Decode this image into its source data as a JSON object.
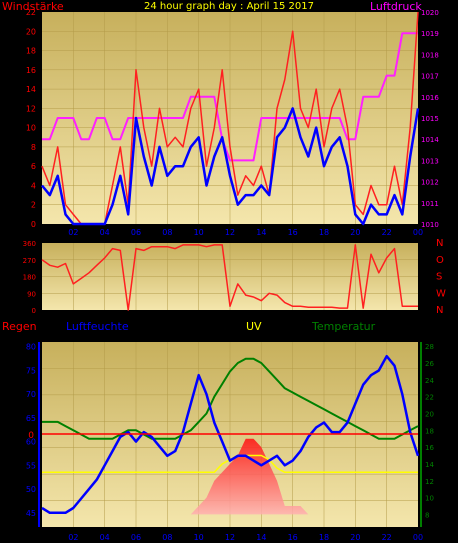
{
  "title": "24 hour graph day : April 15 2017",
  "colors": {
    "background": "#000000",
    "plot_top": "#c8b15e",
    "plot_bottom": "#f3e3a8",
    "wind": "#ff2020",
    "wind_avg": "#0000ff",
    "pressure": "#ff20ff",
    "direction": "#ff2020",
    "humidity": "#0000ff",
    "uv": "#ffff00",
    "temperature": "#008000",
    "rain_line": "#ff0000",
    "title": "#ffff00",
    "labels_magenta": "#ff00ff",
    "labels_red": "#ff0000",
    "labels_blue": "#0000ff",
    "labels_green": "#008000"
  },
  "x_ticks": [
    "02",
    "04",
    "06",
    "08",
    "10",
    "12",
    "14",
    "16",
    "18",
    "20",
    "22",
    "00"
  ],
  "chart_data": [
    {
      "type": "line",
      "name": "wind",
      "left_label": "Windstärke",
      "right_label": "Luftdruck",
      "y_left_ticks": [
        "0",
        "2",
        "4",
        "6",
        "8",
        "10",
        "12",
        "14",
        "16",
        "18",
        "20",
        "22"
      ],
      "y_right_ticks": [
        "1010",
        "1011",
        "1012",
        "1013",
        "1014",
        "1015",
        "1016",
        "1017",
        "1018",
        "1019",
        "1020"
      ],
      "ylim_left": [
        0,
        22
      ],
      "ylim_right": [
        1010,
        1020
      ],
      "x": [
        0,
        0.5,
        1,
        1.5,
        2,
        2.5,
        3,
        3.5,
        4,
        4.5,
        5,
        5.5,
        6,
        6.5,
        7,
        7.5,
        8,
        8.5,
        9,
        9.5,
        10,
        10.5,
        11,
        11.5,
        12,
        12.5,
        13,
        13.5,
        14,
        14.5,
        15,
        15.5,
        16,
        16.5,
        17,
        17.5,
        18,
        18.5,
        19,
        19.5,
        20,
        20.5,
        21,
        21.5,
        22,
        22.5,
        23,
        23.5,
        24
      ],
      "series": [
        {
          "values": [
            6,
            4,
            8,
            2,
            1,
            0,
            0,
            0,
            0,
            4,
            8,
            2,
            16,
            10,
            6,
            12,
            8,
            9,
            8,
            12,
            14,
            6,
            10,
            16,
            8,
            3,
            5,
            4,
            6,
            3,
            12,
            15,
            20,
            12,
            10,
            14,
            8,
            12,
            14,
            10,
            2,
            1,
            4,
            2,
            2,
            6,
            2,
            10,
            22
          ]
        },
        {
          "values": [
            4,
            3,
            5,
            1,
            0,
            0,
            0,
            0,
            0,
            2,
            5,
            1,
            11,
            7,
            4,
            8,
            5,
            6,
            6,
            8,
            9,
            4,
            7,
            9,
            5,
            2,
            3,
            3,
            4,
            3,
            9,
            10,
            12,
            9,
            7,
            10,
            6,
            8,
            9,
            6,
            1,
            0,
            2,
            1,
            1,
            3,
            1,
            7,
            12
          ]
        },
        {
          "values": [
            1014,
            1014,
            1015,
            1015,
            1015,
            1014,
            1014,
            1015,
            1015,
            1014,
            1014,
            1015,
            1015,
            1015,
            1015,
            1015,
            1015,
            1015,
            1015,
            1016,
            1016,
            1016,
            1016,
            1014,
            1013,
            1013,
            1013,
            1013,
            1015,
            1015,
            1015,
            1015,
            1015,
            1015,
            1015,
            1015,
            1015,
            1015,
            1015,
            1014,
            1014,
            1016,
            1016,
            1016,
            1017,
            1017,
            1019,
            1019,
            1019
          ]
        }
      ]
    },
    {
      "type": "line",
      "name": "direction",
      "y_left_ticks": [
        "0",
        "90",
        "180",
        "270",
        "360"
      ],
      "y_right_ticks": [
        "N",
        "W",
        "S",
        "O",
        "N"
      ],
      "ylim": [
        0,
        360
      ],
      "x": [
        0,
        0.5,
        1,
        1.5,
        2,
        2.5,
        3,
        3.5,
        4,
        4.5,
        5,
        5.5,
        6,
        6.5,
        7,
        7.5,
        8,
        8.5,
        9,
        9.5,
        10,
        10.5,
        11,
        11.5,
        12,
        12.5,
        13,
        13.5,
        14,
        14.5,
        15,
        15.5,
        16,
        16.5,
        17,
        17.5,
        18,
        18.5,
        19,
        19.5,
        20,
        20.5,
        21,
        21.5,
        22,
        22.5,
        23,
        23.5,
        24
      ],
      "values": [
        270,
        240,
        230,
        250,
        140,
        170,
        200,
        240,
        280,
        330,
        320,
        0,
        330,
        320,
        340,
        340,
        340,
        330,
        350,
        350,
        350,
        340,
        350,
        350,
        20,
        140,
        80,
        70,
        50,
        90,
        80,
        40,
        20,
        20,
        15,
        15,
        15,
        15,
        10,
        10,
        350,
        10,
        300,
        200,
        280,
        330,
        20,
        20,
        20
      ]
    },
    {
      "type": "line",
      "name": "humidity_uv_temperature",
      "left_label": "Regen",
      "labels": [
        "Luftfeuchte",
        "UV",
        "Temperatur"
      ],
      "y_left_ticks": [
        "45",
        "50",
        "55",
        "60",
        "65",
        "70",
        "75",
        "80"
      ],
      "y_right_ticks": [
        "8",
        "10",
        "12",
        "14",
        "16",
        "18",
        "20",
        "22",
        "24",
        "26",
        "28"
      ],
      "rain_label": "0",
      "ylim_left": [
        42,
        81
      ],
      "ylim_right": [
        6.5,
        28.5
      ],
      "x": [
        0,
        0.5,
        1,
        1.5,
        2,
        2.5,
        3,
        3.5,
        4,
        4.5,
        5,
        5.5,
        6,
        6.5,
        7,
        7.5,
        8,
        8.5,
        9,
        9.5,
        10,
        10.5,
        11,
        11.5,
        12,
        12.5,
        13,
        13.5,
        14,
        14.5,
        15,
        15.5,
        16,
        16.5,
        17,
        17.5,
        18,
        18.5,
        19,
        19.5,
        20,
        20.5,
        21,
        21.5,
        22,
        22.5,
        23,
        23.5,
        24
      ],
      "series": [
        {
          "values": [
            46,
            45,
            45,
            45,
            46,
            48,
            50,
            52,
            55,
            58,
            61,
            62,
            60,
            62,
            61,
            59,
            57,
            58,
            62,
            68,
            74,
            70,
            64,
            60,
            56,
            57,
            57,
            56,
            55,
            56,
            57,
            55,
            56,
            58,
            61,
            63,
            64,
            62,
            62,
            64,
            68,
            72,
            74,
            75,
            78,
            76,
            70,
            62,
            57
          ]
        },
        {
          "values": [
            8,
            8,
            8,
            8,
            8,
            8,
            8,
            8,
            8,
            8,
            8,
            8,
            8,
            8,
            8,
            8,
            8,
            8,
            8,
            8,
            9,
            10,
            12,
            13,
            14,
            15,
            17,
            17,
            16,
            14,
            12,
            9,
            9,
            9,
            8,
            8,
            8,
            8,
            8,
            8,
            8,
            8,
            8,
            8,
            8,
            8,
            8,
            8,
            8
          ]
        },
        {
          "values": [
            19,
            19,
            19,
            18.5,
            18,
            17.5,
            17,
            17,
            17,
            17,
            17.5,
            18,
            18,
            17.5,
            17,
            17,
            17,
            17,
            17.5,
            18,
            19,
            20,
            22,
            23.5,
            25,
            26,
            26.5,
            26.5,
            26,
            25,
            24,
            23,
            22.5,
            22,
            21.5,
            21,
            20.5,
            20,
            19.5,
            19,
            18.5,
            18,
            17.5,
            17,
            17,
            17,
            17.5,
            18,
            18.5
          ]
        },
        {
          "values": [
            13,
            13,
            13,
            13,
            13,
            13,
            13,
            13,
            13,
            13,
            13,
            13,
            13,
            13,
            13,
            13,
            13,
            13,
            13,
            13,
            13,
            13,
            13,
            14,
            14.5,
            15,
            15,
            15,
            15,
            14.5,
            13.5,
            13,
            13,
            13,
            13,
            13,
            13,
            13,
            13,
            13,
            13,
            13,
            13,
            13,
            13,
            13,
            13,
            13,
            13
          ]
        }
      ]
    }
  ]
}
